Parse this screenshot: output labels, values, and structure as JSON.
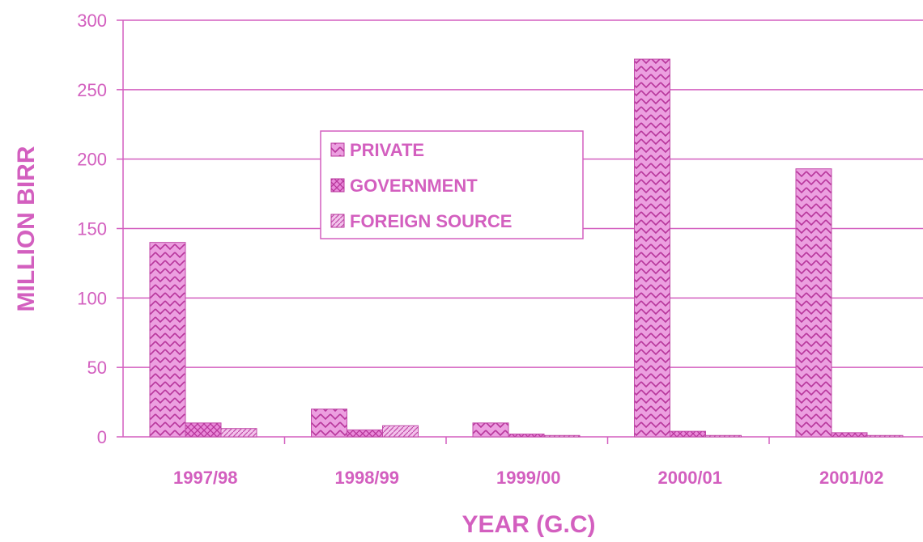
{
  "chart_data": {
    "type": "bar",
    "title": "",
    "xlabel": "YEAR (G.C)",
    "ylabel": "MILLION BIRR",
    "categories": [
      "1997/98",
      "1998/99",
      "1999/00",
      "2000/01",
      "2001/02"
    ],
    "series": [
      {
        "name": "PRIVATE",
        "values": [
          140,
          20,
          10,
          272,
          193
        ]
      },
      {
        "name": "GOVERNMENT",
        "values": [
          10,
          5,
          2,
          4,
          3
        ]
      },
      {
        "name": "FOREIGN SOURCE",
        "values": [
          6,
          8,
          1,
          1,
          1
        ]
      }
    ],
    "ylim": [
      0,
      300
    ],
    "yticks": [
      0,
      50,
      100,
      150,
      200,
      250,
      300
    ],
    "grid": true,
    "legend_position": "center-left",
    "color": "#d35fbf",
    "background": "#ffffff"
  }
}
